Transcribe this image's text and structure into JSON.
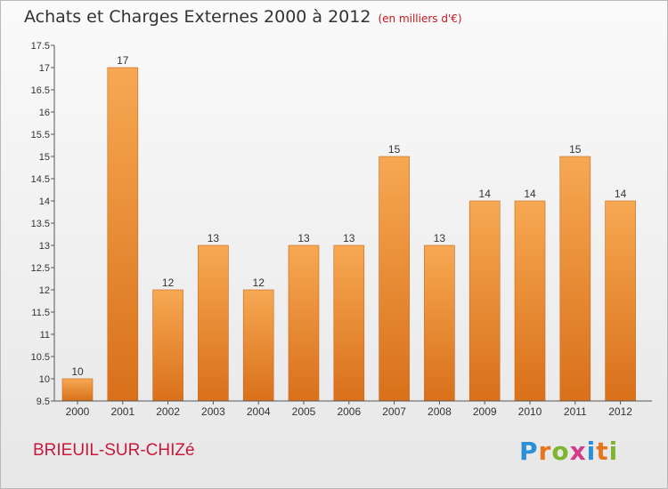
{
  "title": "Achats et Charges Externes 2000 à 2012",
  "unit": "(en milliers d'€)",
  "location": "BRIEUIL-SUR-CHIZé",
  "logo": {
    "letters": [
      "P",
      "r",
      "o",
      "x",
      "i",
      "t",
      "i"
    ],
    "colors": [
      "#2a8fd6",
      "#e8761e",
      "#7cb631",
      "#d23b8a",
      "#2a8fd6",
      "#e8761e",
      "#7cb631"
    ]
  },
  "colors": {
    "bar_top": "#f7a853",
    "bar_bottom": "#d9701a",
    "bar_edge": "#c8681c"
  },
  "chart_data": {
    "type": "bar",
    "categories": [
      "2000",
      "2001",
      "2002",
      "2003",
      "2004",
      "2005",
      "2006",
      "2007",
      "2008",
      "2009",
      "2010",
      "2011",
      "2012"
    ],
    "values": [
      10,
      17,
      12,
      13,
      12,
      13,
      13,
      15,
      13,
      14,
      14,
      15,
      14
    ],
    "labels": [
      "10",
      "17",
      "12",
      "13",
      "12",
      "13",
      "13",
      "15",
      "13",
      "14",
      "14",
      "15",
      "14"
    ],
    "ylim": [
      9.5,
      17.5
    ],
    "yticks": [
      9.5,
      10,
      10.5,
      11,
      11.5,
      12,
      12.5,
      13,
      13.5,
      14,
      14.5,
      15,
      15.5,
      16,
      16.5,
      17,
      17.5
    ],
    "ytick_labels": [
      "9.5",
      "10",
      "10.5",
      "11",
      "11.5",
      "12",
      "12.5",
      "13",
      "13.5",
      "14",
      "14.5",
      "15",
      "15.5",
      "16",
      "16.5",
      "17",
      "17.5"
    ],
    "grid": false,
    "legend": "none"
  }
}
